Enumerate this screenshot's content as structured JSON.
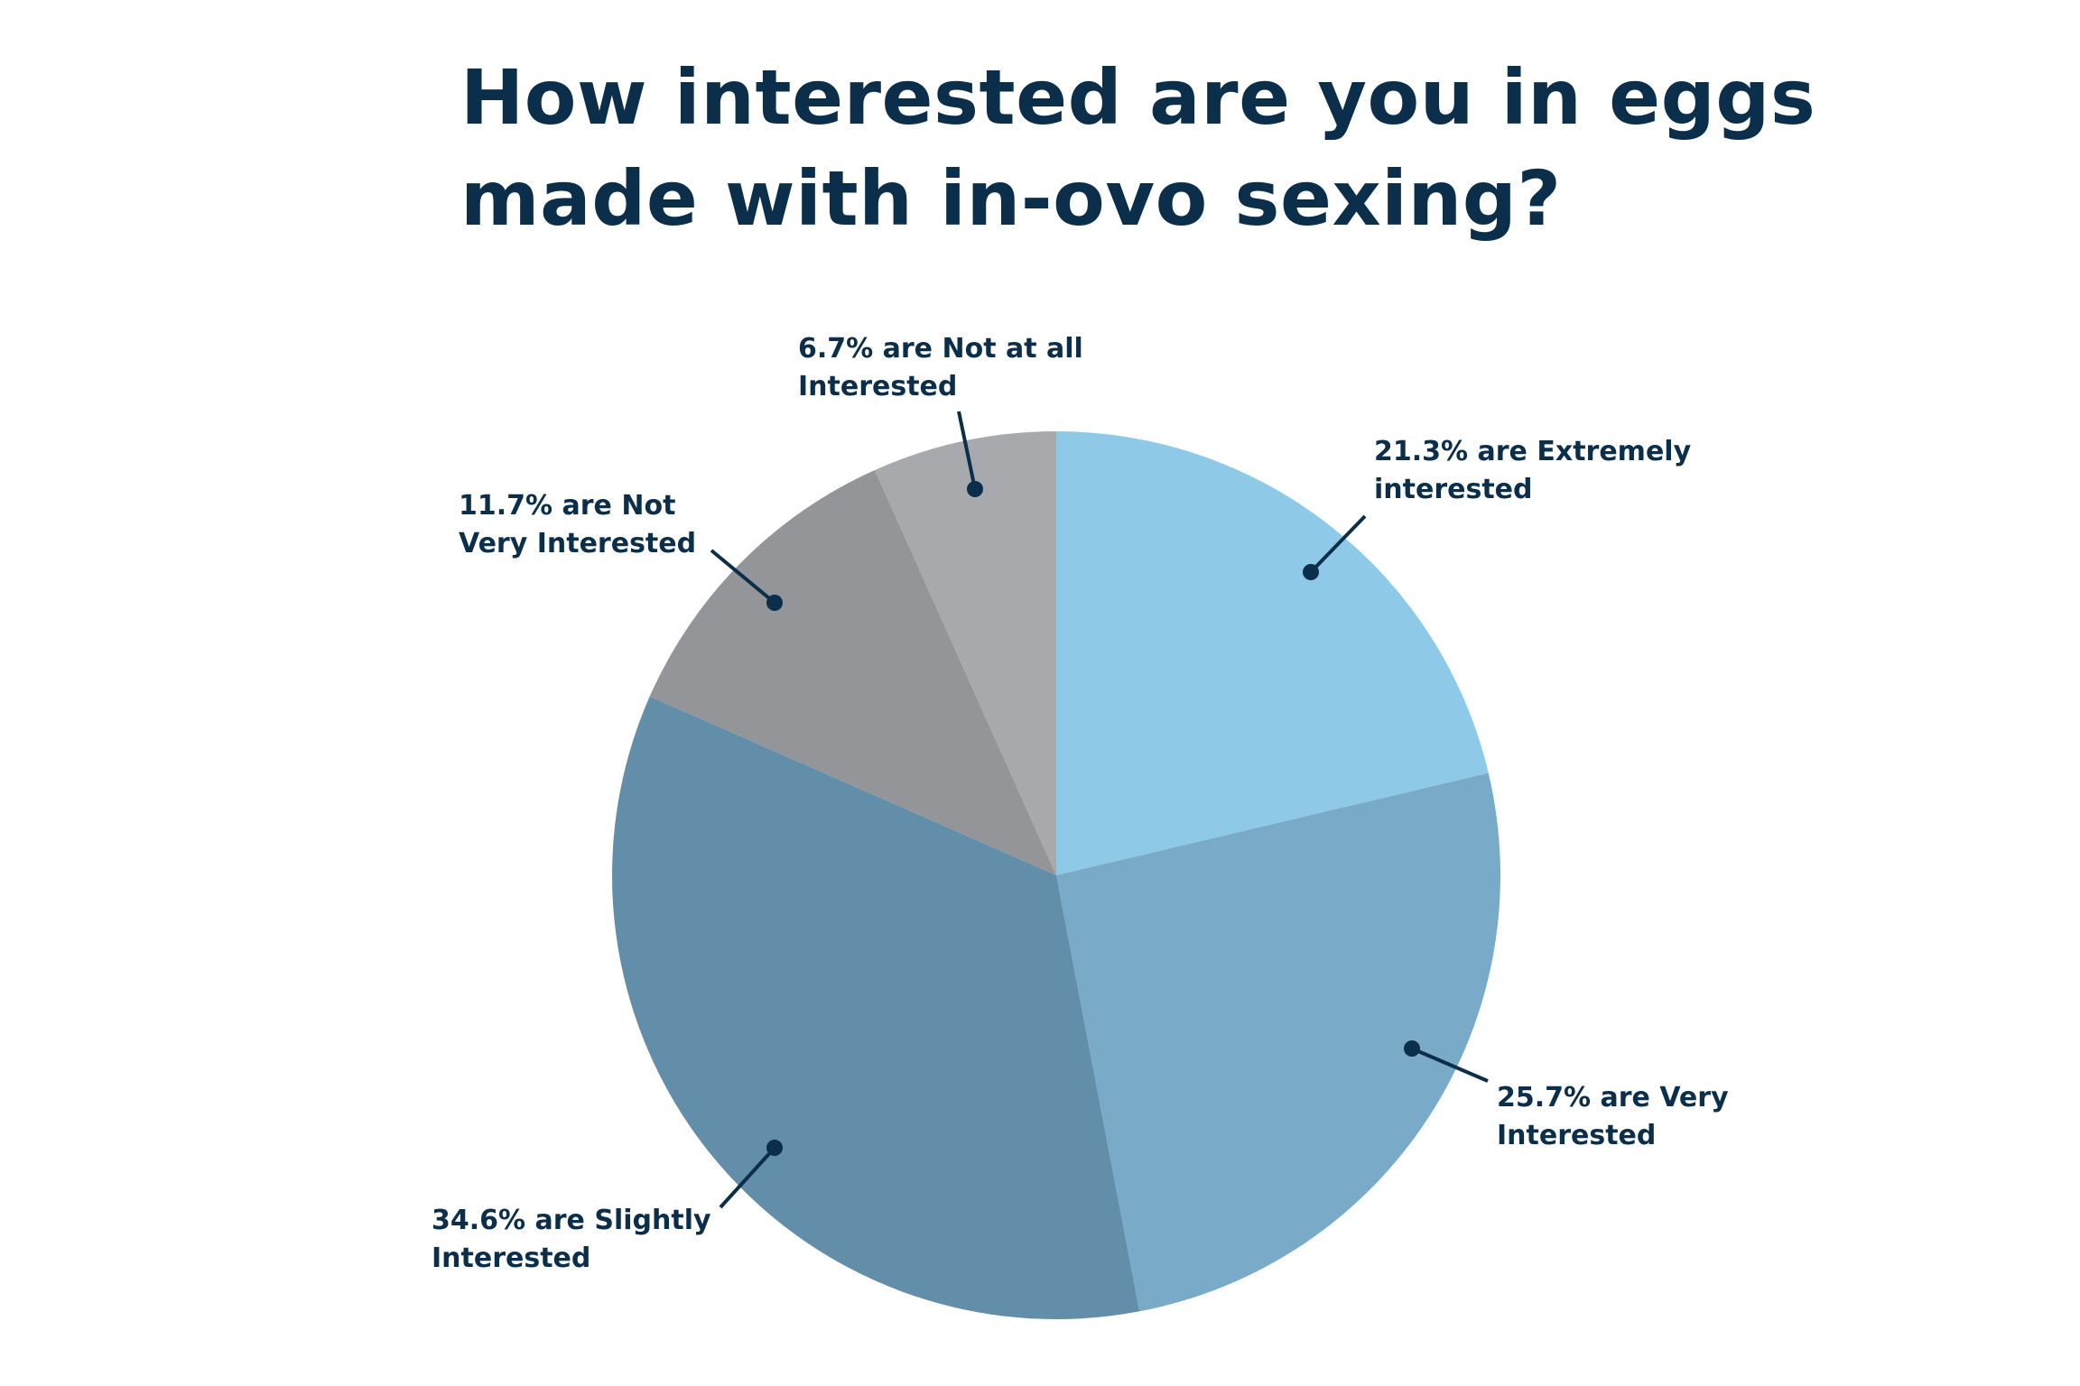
{
  "title_lines": [
    "How interested are you in eggs",
    "made with in-ovo sexing?"
  ],
  "chart_data": {
    "type": "pie",
    "title": "How interested are you in eggs made with in-ovo sexing?",
    "start_angle_deg": 0,
    "direction": "clockwise",
    "slices": [
      {
        "value": 21.3,
        "color": "#8ecae8",
        "label_lines": [
          "21.3% are Extremely",
          "interested"
        ]
      },
      {
        "value": 25.7,
        "color": "#79abc8",
        "label_lines": [
          "25.7% are Very",
          "Interested"
        ]
      },
      {
        "value": 34.6,
        "color": "#628ea9",
        "label_lines": [
          "34.6% are Slightly",
          "Interested"
        ]
      },
      {
        "value": 11.7,
        "color": "#949598",
        "label_lines": [
          "11.7% are Not",
          "Very Interested"
        ]
      },
      {
        "value": 6.7,
        "color": "#a8a9ad",
        "label_lines": [
          "6.7% are Not at all",
          "Interested"
        ]
      }
    ]
  }
}
